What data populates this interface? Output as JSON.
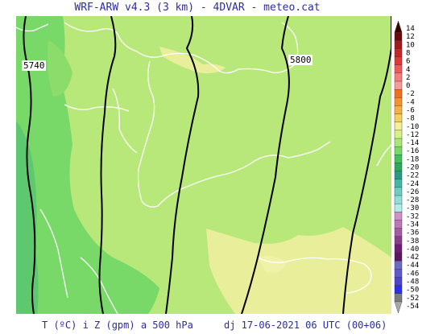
{
  "header": {
    "title": "WRF-ARW v4.3 (3 km) - 4DVAR - meteo.cat"
  },
  "footer": {
    "left": "T (ºC) i Z (gpm) a 500 hPa",
    "right": "dj 17-06-2021 06 UTC (00+06)"
  },
  "map": {
    "contour_labels": [
      "5740",
      "5800"
    ],
    "background_color": "#b8e87a",
    "cold_color": "#78d868",
    "coldest_color": "#5ec86e",
    "warm_color": "#e8ee9a"
  },
  "scale": {
    "labels": [
      "14",
      "12",
      "10",
      "8",
      "6",
      "4",
      "2",
      "0",
      "-2",
      "-4",
      "-6",
      "-8",
      "-10",
      "-12",
      "-14",
      "-16",
      "-18",
      "-20",
      "-22",
      "-24",
      "-26",
      "-28",
      "-30",
      "-32",
      "-34",
      "-36",
      "-38",
      "-40",
      "-42",
      "-44",
      "-46",
      "-48",
      "-50",
      "-52",
      "-54"
    ],
    "colors": [
      "#3a0000",
      "#6a0a0a",
      "#9e1c1c",
      "#c42828",
      "#e03838",
      "#ee5a5a",
      "#f47e7e",
      "#f79a9a",
      "#f0701e",
      "#f4922e",
      "#f6b044",
      "#f5d060",
      "#f4f09a",
      "#d6f08a",
      "#a8e676",
      "#7ad868",
      "#44c05a",
      "#2ea85a",
      "#2a9a86",
      "#44b6a8",
      "#6acec0",
      "#8ee0d6",
      "#b2ece6",
      "#cc92c4",
      "#bc78b6",
      "#a45ca0",
      "#8a3c8c",
      "#6e1c74",
      "#5a1660",
      "#6c6ac2",
      "#5e5aca",
      "#4a46d2",
      "#2e2ee8",
      "#7c7c7c",
      "#a8a8a8"
    ]
  }
}
